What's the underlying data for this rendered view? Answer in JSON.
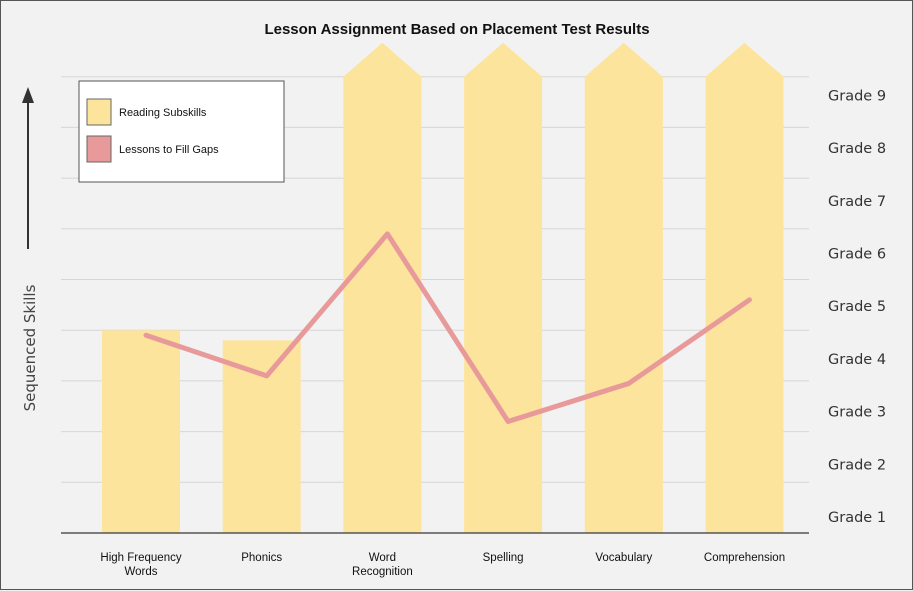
{
  "colors": {
    "bar": "#fde49c",
    "line": "#e89a9a",
    "grid": "#d6d6d6",
    "axis": "#555555",
    "background": "#f2f2f2"
  },
  "chart_data": {
    "type": "bar",
    "title": "Lesson Assignment Based on Placement Test Results",
    "xlabel": "",
    "ylabel": "Sequenced Skills",
    "categories": [
      [
        "High Frequency",
        "Words"
      ],
      [
        "Phonics"
      ],
      [
        "Word",
        "Recognition"
      ],
      [
        "Spelling"
      ],
      [
        "Vocabulary"
      ],
      [
        "Comprehension"
      ]
    ],
    "y_tick_labels": [
      "Grade 1",
      "Grade 2",
      "Grade 3",
      "Grade 4",
      "Grade 5",
      "Grade 6",
      "Grade 7",
      "Grade 8",
      "Grade 9"
    ],
    "ylim": [
      0,
      9
    ],
    "grid": true,
    "legend": {
      "position": "top-left",
      "entries": [
        "Reading Subskills",
        "Lessons to Fill Gaps"
      ]
    },
    "series": [
      {
        "name": "Reading Subskills",
        "type": "bar",
        "values": [
          4.0,
          3.8,
          9.0,
          9.0,
          9.0,
          9.0
        ],
        "arrow_tip": [
          false,
          false,
          true,
          true,
          true,
          true
        ]
      },
      {
        "name": "Lessons to Fill Gaps",
        "type": "line",
        "values": [
          3.9,
          3.1,
          5.9,
          2.2,
          2.95,
          4.6
        ]
      }
    ]
  }
}
